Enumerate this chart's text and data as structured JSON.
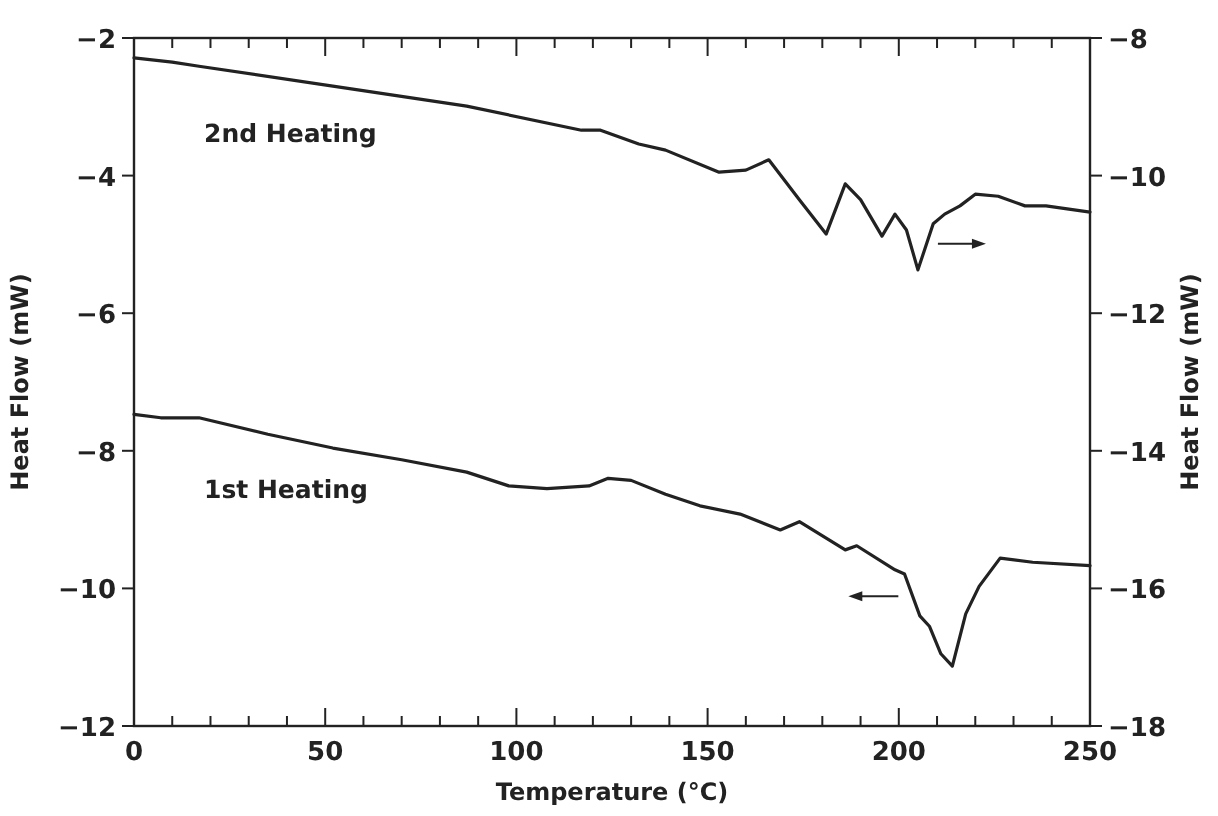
{
  "chart_data": {
    "type": "line",
    "xlabel": "Temperature (°C)",
    "ylabel": "Heat Flow (mW)",
    "y2label": "Heat Flow (mW)",
    "xlim": [
      0,
      250
    ],
    "ylim": [
      -12,
      -2
    ],
    "y2lim": [
      -18,
      -8
    ],
    "xticks": [
      0,
      {
        "value": 10,
        "label": null
      },
      {
        "value": 20,
        "label": null
      },
      {
        "value": 30,
        "label": null
      },
      {
        "value": 40,
        "label": null
      },
      50,
      {
        "value": 60,
        "label": null
      },
      {
        "value": 70,
        "label": null
      },
      {
        "value": 80,
        "label": null
      },
      {
        "value": 90,
        "label": null
      },
      100,
      {
        "value": 110,
        "label": null
      },
      {
        "value": 120,
        "label": null
      },
      {
        "value": 130,
        "label": null
      },
      {
        "value": 140,
        "label": null
      },
      150,
      {
        "value": 160,
        "label": null
      },
      {
        "value": 170,
        "label": null
      },
      {
        "value": 180,
        "label": null
      },
      {
        "value": 190,
        "label": null
      },
      200,
      {
        "value": 210,
        "label": null
      },
      {
        "value": 220,
        "label": null
      },
      {
        "value": 230,
        "label": null
      },
      {
        "value": 240,
        "label": null
      },
      250
    ],
    "yticks": [
      -12,
      -10,
      -8,
      -6,
      -4,
      -2
    ],
    "y2ticks": [
      -18,
      -16,
      -14,
      -12,
      -10,
      -8
    ],
    "grid": false,
    "marker": "none",
    "line_style": "solid",
    "series": [
      {
        "name": "2nd Heating",
        "color": "#222222",
        "axis": "y2",
        "x": [
          0,
          10,
          17,
          52,
          87,
          117,
          122,
          132,
          139,
          153,
          160,
          166,
          174,
          181,
          186,
          190,
          195.6,
          199,
          202,
          205,
          209,
          212,
          216,
          220,
          226,
          233,
          238.5,
          250
        ],
        "values": [
          -8.29,
          -8.35,
          -8.41,
          -8.7,
          -8.99,
          -9.34,
          -9.34,
          -9.54,
          -9.63,
          -9.95,
          -9.92,
          -9.77,
          -10.35,
          -10.85,
          -10.12,
          -10.35,
          -10.88,
          -10.56,
          -10.79,
          -11.37,
          -10.7,
          -10.56,
          -10.44,
          -10.27,
          -10.3,
          -10.44,
          -10.44,
          -10.53
        ]
      },
      {
        "name": "1st Heating",
        "color": "#222222",
        "x": [
          0,
          7,
          17,
          35,
          52,
          70,
          87,
          98,
          108,
          119,
          124,
          130,
          139,
          148,
          158.5,
          169,
          174,
          186,
          189,
          199,
          201.5,
          205.5,
          208,
          211,
          214,
          217.5,
          221,
          226.5,
          235,
          250
        ],
        "values": [
          -7.47,
          -7.52,
          -7.52,
          -7.76,
          -7.96,
          -8.13,
          -8.31,
          -8.51,
          -8.55,
          -8.51,
          -8.4,
          -8.43,
          -8.63,
          -8.8,
          -8.92,
          -9.15,
          -9.03,
          -9.44,
          -9.38,
          -9.73,
          -9.79,
          -10.4,
          -10.55,
          -10.95,
          -11.13,
          -10.37,
          -9.97,
          -9.56,
          -9.62,
          -9.67
        ]
      }
    ]
  }
}
